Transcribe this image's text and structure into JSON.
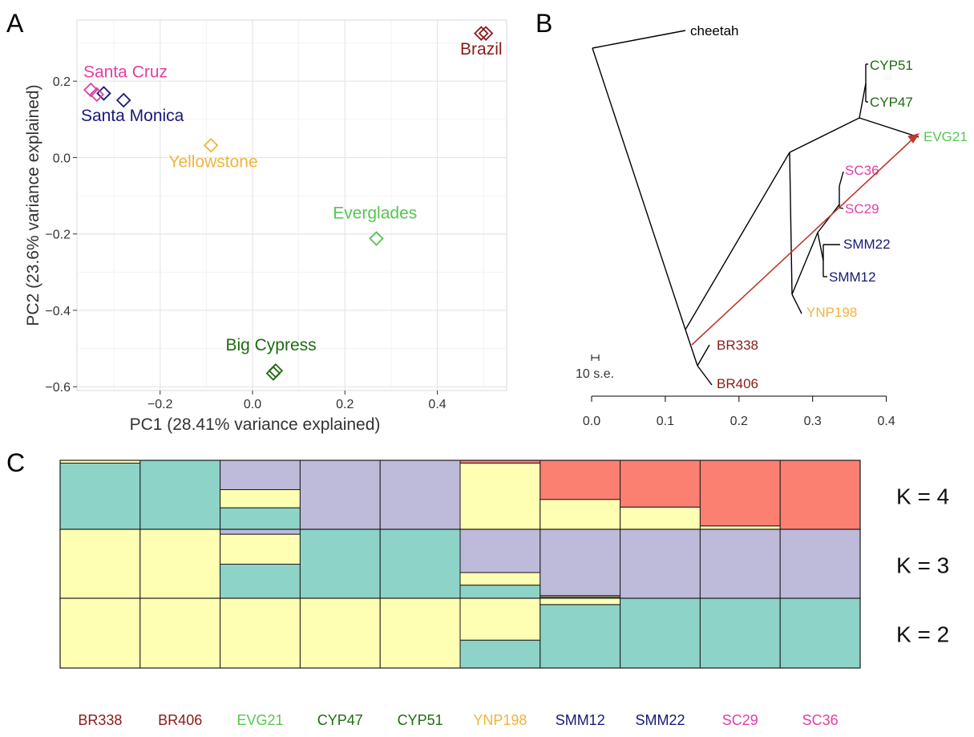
{
  "panels": {
    "a": "A",
    "b": "B",
    "c": "C"
  },
  "colors": {
    "brazil": "#8b1a1a",
    "everglades": "#55c74e",
    "bigcypress": "#1e6b12",
    "yellowstone": "#f0b43c",
    "santamonica": "#161a78",
    "santacruz": "#e040a4",
    "k_teal": "#8dd3c7",
    "k_yellow": "#ffffb3",
    "k_purple": "#bebada",
    "k_red": "#fb8072",
    "tree_arrow": "#c0392b"
  },
  "chart_data": [
    {
      "type": "scatter",
      "panel": "A",
      "xlabel": "PC1 (28.41% variance explained)",
      "ylabel": "PC2 (23.6% variance explained)",
      "xlim": [
        -0.38,
        0.55
      ],
      "ylim": [
        -0.61,
        0.36
      ],
      "xticks": [
        -0.2,
        0.0,
        0.2,
        0.4
      ],
      "xtick_labels": [
        "−0.2",
        "0.0",
        "0.2",
        "0.4"
      ],
      "yticks": [
        -0.6,
        -0.4,
        -0.2,
        0.0,
        0.2
      ],
      "ytick_labels": [
        "−0.6",
        "−0.4",
        "−0.2",
        "0.0",
        "0.2"
      ],
      "grid": true,
      "marker": "open diamond",
      "points": [
        {
          "x": 0.495,
          "y": 0.325,
          "group": "brazil"
        },
        {
          "x": 0.505,
          "y": 0.325,
          "group": "brazil"
        },
        {
          "x": 0.268,
          "y": -0.212,
          "group": "everglades"
        },
        {
          "x": 0.045,
          "y": -0.565,
          "group": "bigcypress"
        },
        {
          "x": 0.05,
          "y": -0.558,
          "group": "bigcypress"
        },
        {
          "x": -0.09,
          "y": 0.032,
          "group": "yellowstone"
        },
        {
          "x": -0.322,
          "y": 0.168,
          "group": "santamonica"
        },
        {
          "x": -0.279,
          "y": 0.15,
          "group": "santamonica"
        },
        {
          "x": -0.35,
          "y": 0.177,
          "group": "santacruz"
        },
        {
          "x": -0.337,
          "y": 0.165,
          "group": "santacruz"
        }
      ],
      "labels": [
        {
          "text": "Brazil",
          "x": 0.495,
          "y": 0.27,
          "group": "brazil"
        },
        {
          "text": "Santa Cruz",
          "x": -0.275,
          "y": 0.21,
          "group": "santacruz"
        },
        {
          "text": "Santa Monica",
          "x": -0.26,
          "y": 0.095,
          "group": "santamonica"
        },
        {
          "text": "Yellowstone",
          "x": -0.085,
          "y": -0.025,
          "group": "yellowstone"
        },
        {
          "text": "Everglades",
          "x": 0.265,
          "y": -0.16,
          "group": "everglades"
        },
        {
          "text": "Big Cypress",
          "x": 0.04,
          "y": -0.505,
          "group": "bigcypress"
        }
      ]
    },
    {
      "type": "tree",
      "panel": "B",
      "xlim": [
        0.0,
        0.42
      ],
      "xticks": [
        0.0,
        0.1,
        0.2,
        0.3,
        0.4
      ],
      "xtick_labels": [
        "0.0",
        "0.1",
        "0.2",
        "0.3",
        "0.4"
      ],
      "scale_label": "10 s.e.",
      "tips": [
        {
          "name": "cheetah",
          "group": "outgroup"
        },
        {
          "name": "CYP51",
          "group": "bigcypress"
        },
        {
          "name": "CYP47",
          "group": "bigcypress"
        },
        {
          "name": "EVG21",
          "group": "everglades"
        },
        {
          "name": "SC36",
          "group": "santacruz"
        },
        {
          "name": "SC29",
          "group": "santacruz"
        },
        {
          "name": "SMM22",
          "group": "santamonica"
        },
        {
          "name": "SMM12",
          "group": "santamonica"
        },
        {
          "name": "YNP198",
          "group": "yellowstone"
        },
        {
          "name": "BR338",
          "group": "brazil"
        },
        {
          "name": "BR406",
          "group": "brazil"
        }
      ],
      "migration": {
        "from": "Brazil stem",
        "to": "EVG21"
      }
    },
    {
      "type": "bar",
      "panel": "C",
      "stacked": true,
      "categories": [
        "BR338",
        "BR406",
        "EVG21",
        "CYP47",
        "CYP51",
        "YNP198",
        "SMM12",
        "SMM22",
        "SC29",
        "SC36"
      ],
      "category_groups": [
        "brazil",
        "brazil",
        "everglades",
        "bigcypress",
        "bigcypress",
        "yellowstone",
        "santamonica",
        "santamonica",
        "santacruz",
        "santacruz"
      ],
      "ylim": [
        0,
        1
      ],
      "rows": [
        {
          "label": "K = 4",
          "clusters": [
            "k_teal",
            "k_yellow",
            "k_purple",
            "k_red"
          ],
          "values": [
            [
              0.96,
              0.04,
              0.0,
              0.0
            ],
            [
              1.0,
              0.0,
              0.0,
              0.0
            ],
            [
              0.32,
              0.26,
              0.42,
              0.0
            ],
            [
              0.0,
              0.0,
              1.0,
              0.0
            ],
            [
              0.0,
              0.0,
              1.0,
              0.0
            ],
            [
              0.0,
              0.96,
              0.0,
              0.04
            ],
            [
              0.0,
              0.44,
              0.0,
              0.56
            ],
            [
              0.0,
              0.33,
              0.0,
              0.67
            ],
            [
              0.0,
              0.06,
              0.0,
              0.94
            ],
            [
              0.0,
              0.0,
              0.0,
              1.0
            ]
          ]
        },
        {
          "label": "K = 3",
          "clusters": [
            "k_teal",
            "k_yellow",
            "k_purple"
          ],
          "values": [
            [
              0.0,
              1.0,
              0.0
            ],
            [
              0.0,
              1.0,
              0.0
            ],
            [
              0.5,
              0.43,
              0.07
            ],
            [
              1.0,
              0.0,
              0.0
            ],
            [
              1.0,
              0.0,
              0.0
            ],
            [
              0.2,
              0.18,
              0.62
            ],
            [
              0.03,
              0.02,
              0.95
            ],
            [
              0.0,
              0.0,
              1.0
            ],
            [
              0.0,
              0.0,
              1.0
            ],
            [
              0.0,
              0.0,
              1.0
            ]
          ]
        },
        {
          "label": "K = 2",
          "clusters": [
            "k_teal",
            "k_yellow"
          ],
          "values": [
            [
              0.0,
              1.0
            ],
            [
              0.0,
              1.0
            ],
            [
              0.0,
              1.0
            ],
            [
              0.0,
              1.0
            ],
            [
              0.0,
              1.0
            ],
            [
              0.4,
              0.6
            ],
            [
              0.91,
              0.09
            ],
            [
              1.0,
              0.0
            ],
            [
              1.0,
              0.0
            ],
            [
              1.0,
              0.0
            ]
          ]
        }
      ]
    }
  ]
}
